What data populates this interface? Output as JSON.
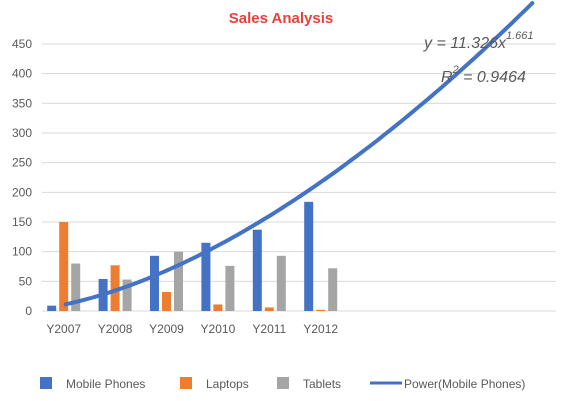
{
  "chart_data": {
    "type": "bar",
    "title": "Sales Analysis",
    "categories": [
      "Y2007",
      "Y2008",
      "Y2009",
      "Y2010",
      "Y2011",
      "Y2012"
    ],
    "series": [
      {
        "name": "Mobile Phones",
        "color": "#4472C4",
        "values": [
          9,
          54,
          93,
          115,
          137,
          184
        ]
      },
      {
        "name": "Laptops",
        "color": "#ED7D31",
        "values": [
          150,
          77,
          32,
          11,
          6,
          2
        ]
      },
      {
        "name": "Tablets",
        "color": "#A5A5A5",
        "values": [
          80,
          53,
          100,
          76,
          93,
          72
        ]
      }
    ],
    "trendline": {
      "name": "Power(Mobile Phones)",
      "type": "power",
      "of_series": "Mobile Phones",
      "coefficient": 11.326,
      "exponent": 1.661,
      "equation_label": "y = 11.326x",
      "exponent_label": "1.661",
      "r2_prefix": "R",
      "r2_sup": "2",
      "r2_label": " = 0.9464",
      "extends_to_x": 10,
      "color": "#4472C4"
    },
    "ylim": [
      0,
      450
    ],
    "ytick_step": 50,
    "x_slots": 10,
    "grid": true,
    "legend_position": "bottom",
    "title_color": "#E8413C"
  }
}
